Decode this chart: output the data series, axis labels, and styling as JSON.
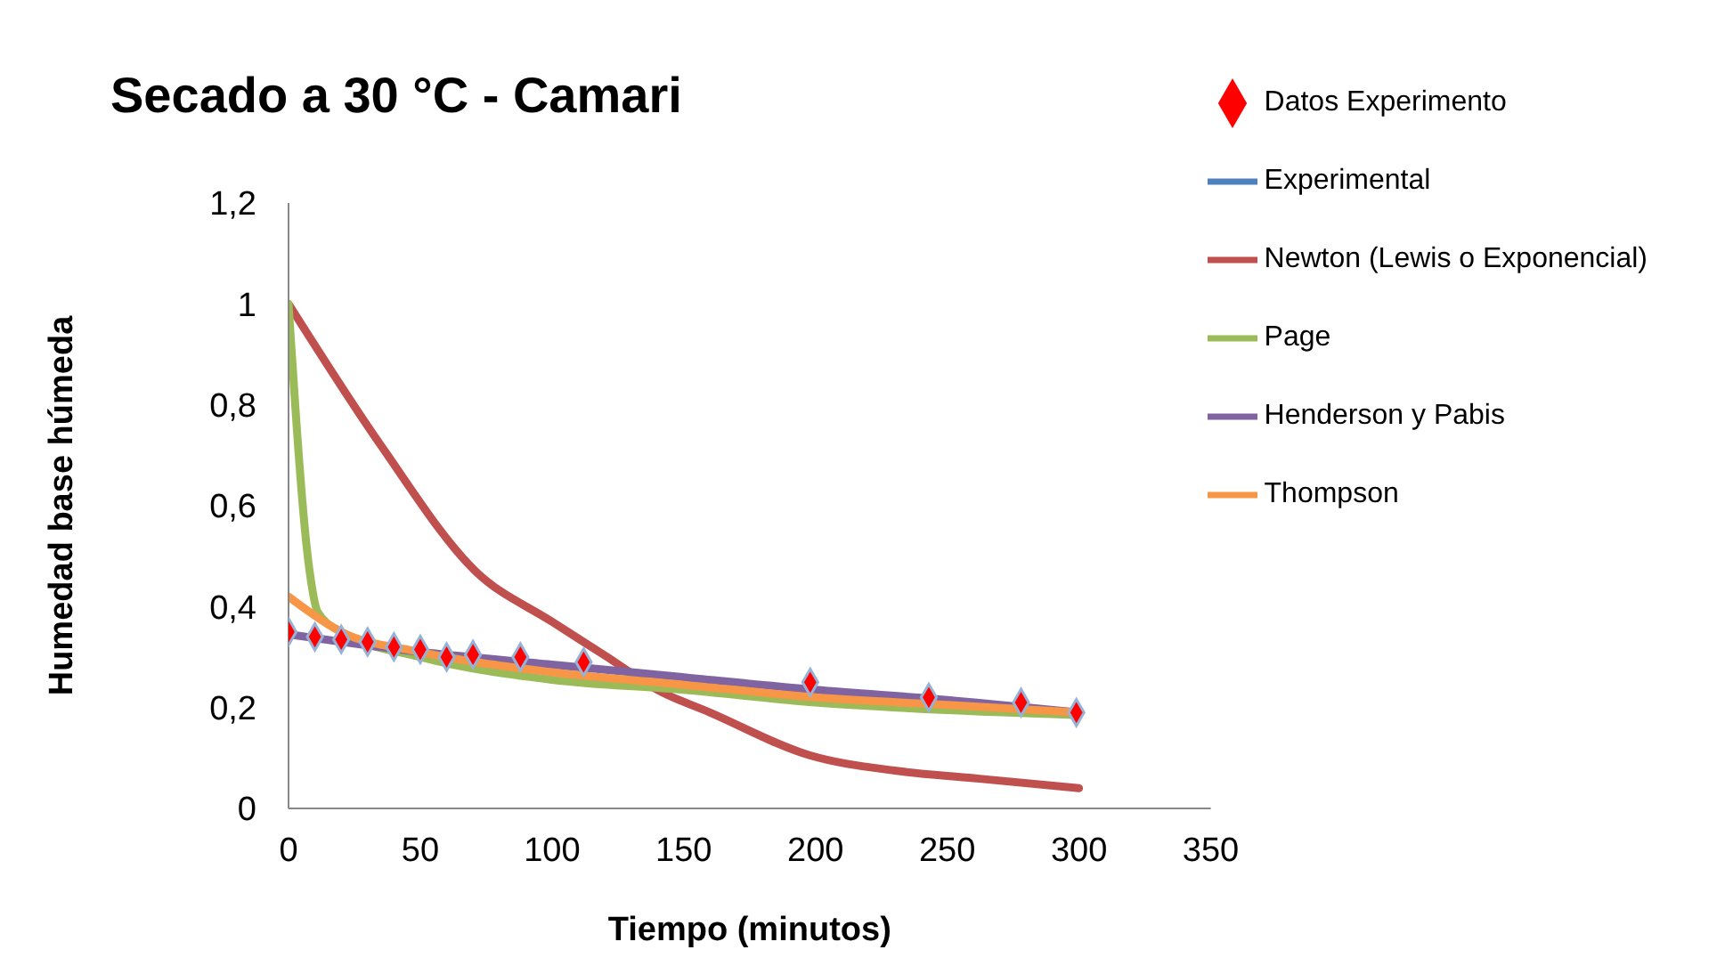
{
  "chart_data": {
    "type": "line",
    "title": "Secado a 30 °C - Camari",
    "xlabel": "Tiempo (minutos)",
    "ylabel": "Humedad base húmeda",
    "xlim": [
      0,
      350
    ],
    "xticks": [
      0,
      50,
      100,
      150,
      200,
      250,
      300,
      350
    ],
    "ylim": [
      0,
      1.2
    ],
    "yticks": [
      0,
      {
        "value": 0.2,
        "label": "0,2"
      },
      {
        "value": 0.4,
        "label": "0,4"
      },
      {
        "value": 0.6,
        "label": "0,6"
      },
      {
        "value": 0.8,
        "label": "0,8"
      },
      1,
      {
        "value": 1.2,
        "label": "1,2"
      }
    ],
    "grid": false,
    "legend": "top right",
    "series": [
      {
        "name": "Datos Experimento",
        "type": "scatter",
        "marker": "diamond",
        "color": "#ff0000",
        "x": [
          0,
          10,
          20,
          30,
          40,
          50,
          60,
          70,
          88,
          112,
          198,
          243,
          278,
          299
        ],
        "values": [
          0.35,
          0.34,
          0.335,
          0.33,
          0.32,
          0.315,
          0.3,
          0.305,
          0.3,
          0.29,
          0.25,
          0.22,
          0.21,
          0.19
        ]
      },
      {
        "name": "Experimental",
        "color": "#4f81bd",
        "values": [
          null
        ]
      },
      {
        "name": "Newton (Lewis o Exponencial)",
        "color": "#c0504d",
        "x": [
          0,
          35,
          71,
          100,
          121,
          140,
          160,
          198,
          230,
          260,
          300
        ],
        "values": [
          1.0,
          0.72,
          0.47,
          0.37,
          0.3,
          0.235,
          0.19,
          0.105,
          0.075,
          0.06,
          0.04
        ]
      },
      {
        "name": "Page",
        "color": "#9bbb59",
        "x": [
          0,
          8,
          11,
          20,
          50,
          100,
          150,
          200,
          250,
          300
        ],
        "values": [
          1.0,
          0.47,
          0.39,
          0.35,
          0.3,
          0.255,
          0.235,
          0.21,
          0.195,
          0.185
        ]
      },
      {
        "name": "Henderson y Pabis",
        "color": "#8064a2",
        "x": [
          0,
          50,
          100,
          150,
          200,
          250,
          300
        ],
        "values": [
          0.345,
          0.31,
          0.285,
          0.26,
          0.235,
          0.215,
          0.19
        ]
      },
      {
        "name": "Thompson",
        "color": "#f79646",
        "x": [
          0,
          20,
          50,
          100,
          150,
          200,
          250,
          300
        ],
        "values": [
          0.42,
          0.35,
          0.31,
          0.27,
          0.245,
          0.22,
          0.205,
          0.19
        ]
      }
    ]
  }
}
